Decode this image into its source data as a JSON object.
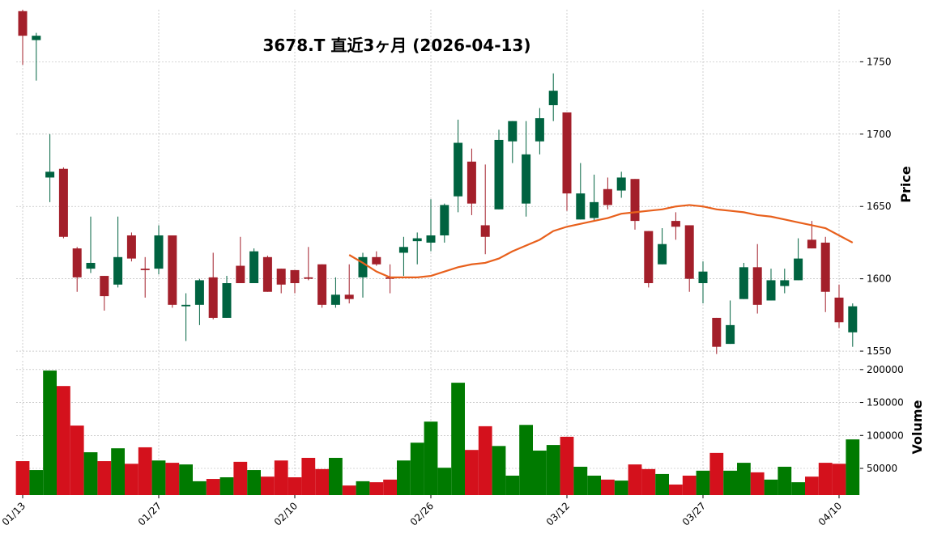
{
  "chart_data": {
    "type": "candlestick",
    "title": "3678.T 直近3ヶ月 (2026-04-13)",
    "ylabel": "Price",
    "y2label": "Volume",
    "categories": [
      "01/13",
      null,
      null,
      null,
      null,
      null,
      null,
      null,
      null,
      null,
      "01/27",
      null,
      null,
      null,
      null,
      null,
      null,
      null,
      null,
      null,
      "02/10",
      null,
      null,
      null,
      null,
      null,
      null,
      null,
      null,
      null,
      "02/26",
      null,
      null,
      null,
      null,
      null,
      null,
      null,
      null,
      null,
      "03/12",
      null,
      null,
      null,
      null,
      null,
      null,
      null,
      null,
      null,
      "03/27",
      null,
      null,
      null,
      null,
      null,
      null,
      null,
      null,
      null,
      "04/10",
      null
    ],
    "open": [
      1785,
      1765,
      1670,
      1676,
      1621,
      1607,
      1602,
      1596,
      1630,
      1607,
      1607,
      1630,
      1581,
      1582,
      1601,
      1573,
      1609,
      1597,
      1615,
      1607,
      1606,
      1601,
      1610,
      1582,
      1589,
      1601,
      1615,
      1601,
      1618,
      1626,
      1625,
      1630,
      1657,
      1681,
      1637,
      1648,
      1695,
      1652,
      1695,
      1720,
      1715,
      1641,
      1642,
      1662,
      1661,
      1669,
      1633,
      1610,
      1640,
      1637,
      1597,
      1573,
      1555,
      1586,
      1608,
      1585,
      1595,
      1599,
      1627,
      1625,
      1587,
      1563
    ],
    "high": [
      1786,
      1770,
      1700,
      1677,
      1622,
      1643,
      1602,
      1643,
      1632,
      1615,
      1637,
      1630,
      1590,
      1600,
      1618,
      1602,
      1629,
      1621,
      1616,
      1607,
      1606,
      1622,
      1610,
      1601,
      1610,
      1618,
      1619,
      1610,
      1629,
      1632,
      1655,
      1652,
      1710,
      1690,
      1679,
      1703,
      1709,
      1709,
      1718,
      1742,
      1715,
      1680,
      1672,
      1670,
      1674,
      1669,
      1633,
      1635,
      1646,
      1637,
      1612,
      1573,
      1585,
      1611,
      1624,
      1607,
      1607,
      1628,
      1640,
      1629,
      1596,
      1583
    ],
    "low": [
      1748,
      1737,
      1653,
      1628,
      1591,
      1604,
      1578,
      1594,
      1612,
      1587,
      1603,
      1580,
      1557,
      1568,
      1572,
      1573,
      1597,
      1597,
      1591,
      1590,
      1590,
      1599,
      1580,
      1580,
      1583,
      1587,
      1609,
      1590,
      1602,
      1610,
      1619,
      1625,
      1646,
      1644,
      1617,
      1648,
      1680,
      1643,
      1686,
      1709,
      1647,
      1641,
      1640,
      1648,
      1656,
      1634,
      1594,
      1610,
      1627,
      1591,
      1583,
      1548,
      1555,
      1586,
      1576,
      1585,
      1590,
      1599,
      1621,
      1577,
      1566,
      1553
    ],
    "close": [
      1768,
      1768,
      1674,
      1629,
      1601,
      1611,
      1588,
      1615,
      1614,
      1606,
      1630,
      1582,
      1582,
      1599,
      1573,
      1597,
      1597,
      1619,
      1591,
      1596,
      1597,
      1600,
      1582,
      1589,
      1586,
      1615,
      1610,
      1600,
      1622,
      1628,
      1630,
      1651,
      1694,
      1652,
      1629,
      1696,
      1709,
      1686,
      1711,
      1730,
      1659,
      1659,
      1653,
      1651,
      1670,
      1640,
      1597,
      1624,
      1636,
      1600,
      1605,
      1553,
      1568,
      1608,
      1582,
      1599,
      1599,
      1614,
      1621,
      1591,
      1570,
      1581
    ],
    "volume": [
      61000,
      47500,
      198500,
      175000,
      115000,
      74500,
      61000,
      80500,
      57000,
      82000,
      62000,
      58500,
      56000,
      30500,
      34000,
      36500,
      60000,
      47500,
      37500,
      62000,
      36500,
      66000,
      49000,
      66000,
      24000,
      30500,
      29000,
      33000,
      62000,
      89000,
      121000,
      51000,
      180000,
      78000,
      114000,
      84000,
      39000,
      116000,
      77000,
      85500,
      98000,
      52500,
      39000,
      33000,
      31500,
      56000,
      49000,
      41500,
      25500,
      39000,
      46500,
      73500,
      46500,
      58500,
      44000,
      33000,
      52500,
      29000,
      37500,
      58500,
      57000,
      94000
    ],
    "ma": {
      "color": "#e8601c",
      "values": [
        null,
        null,
        null,
        null,
        null,
        null,
        null,
        null,
        null,
        null,
        null,
        null,
        null,
        null,
        null,
        null,
        null,
        null,
        null,
        null,
        null,
        null,
        null,
        null,
        1616.5,
        1611,
        1605,
        1601,
        1601,
        1601,
        1602,
        1605,
        1608,
        1610,
        1611,
        1614,
        1619,
        1623,
        1627,
        1633,
        1636,
        1638,
        1640,
        1642,
        1645,
        1646,
        1647,
        1648,
        1650,
        1651,
        1650,
        1648,
        1647,
        1646,
        1644,
        1643,
        1641,
        1639,
        1637,
        1635,
        1630,
        1625
      ]
    },
    "up_color": "#006340",
    "down_color": "#a31f2a",
    "volume_up_color": "#007a00",
    "volume_down_color": "#d4111c",
    "ylim": [
      1545,
      1786
    ],
    "yticks": [
      1550,
      1600,
      1650,
      1700,
      1750
    ],
    "y2lim": [
      9500,
      213300
    ],
    "y2ticks": [
      50000,
      100000,
      150000,
      200000
    ],
    "grid": true
  }
}
